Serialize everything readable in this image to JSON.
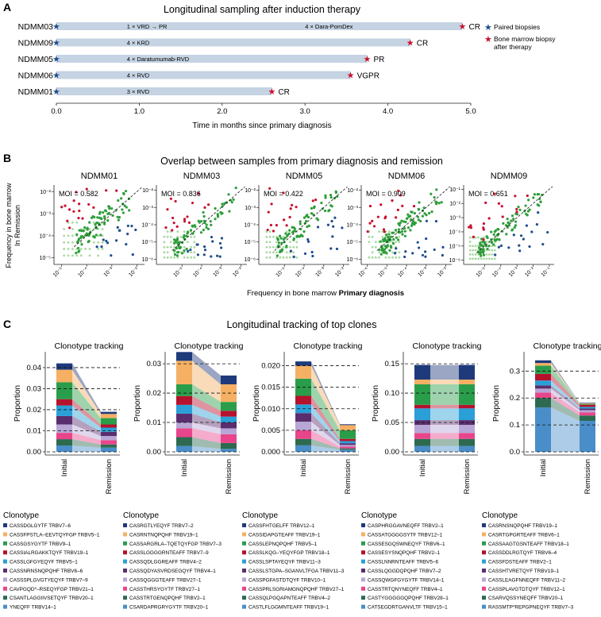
{
  "panels": {
    "a": "A",
    "b": "B",
    "c": "C"
  },
  "colors": {
    "paired_star": "#1f4e8c",
    "bm_star": "#c8102e",
    "timeline_bar": "#c5d3e3",
    "red_dot": "#c8102e",
    "green_dot": "#2e9e3a",
    "lightgreen_dot": "#a8d8a0",
    "blue_dot": "#1f4e8c"
  },
  "chart_data": [
    {
      "type": "bar",
      "panel": "A",
      "title": "Longitudinal sampling after induction therapy",
      "xlabel": "Time in months since primary diagnosis",
      "xlim": [
        0,
        5.0
      ],
      "xticks": [
        "0.0",
        "1.0",
        "2.0",
        "3.0",
        "4.0",
        "5.0"
      ],
      "xtick_values": [
        0,
        1,
        2,
        3,
        4,
        5
      ],
      "legend": [
        "Paired biopsies",
        "Bone marrow biopsy",
        "after therapy"
      ],
      "rows": [
        {
          "id": "NDMM03",
          "end": 4.9,
          "response": "CR",
          "segments": [
            {
              "label": "1 × VRD → PR",
              "at": 0.85
            },
            {
              "label": "4 × Dara-PomDex",
              "at": 3.0
            }
          ]
        },
        {
          "id": "NDMM09",
          "end": 4.27,
          "response": "CR",
          "segments": [
            {
              "label": "4 × KRD",
              "at": 0.85
            }
          ]
        },
        {
          "id": "NDMM05",
          "end": 3.75,
          "response": "PR",
          "segments": [
            {
              "label": "4 × Daratumumab-RVD",
              "at": 0.85
            }
          ]
        },
        {
          "id": "NDMM06",
          "end": 3.55,
          "response": "VGPR",
          "segments": [
            {
              "label": "4 × RVD",
              "at": 0.85
            }
          ]
        },
        {
          "id": "NDMM01",
          "end": 2.6,
          "response": "CR",
          "segments": [
            {
              "label": "3 × RVD",
              "at": 0.85
            }
          ]
        }
      ]
    },
    {
      "type": "scatter",
      "panel": "B",
      "title": "Overlap between samples from primary diagnosis and remission",
      "ylabel_line1": "Frequency in bone marrow",
      "ylabel_line2": "In Remission",
      "xlabel_prefix": "Frequency in bone marrow ",
      "xlabel_bold": "Primary diagnosis",
      "subplots": [
        {
          "name": "NDMM01",
          "moi": "MOI = 0.582",
          "xmin": -5.3,
          "xmax": -1.7,
          "ymin": -5.3,
          "ymax": -1.7,
          "xticks": [
            "10⁻⁵",
            "10⁻⁴",
            "10⁻³",
            "10⁻²"
          ],
          "xtick_values": [
            -5,
            -4,
            -3,
            -2
          ],
          "yticks": [
            "10⁻²",
            "10⁻³",
            "10⁻⁴",
            "10⁻⁵"
          ],
          "ytick_values": [
            -2,
            -3,
            -4,
            -5
          ],
          "seed": 11
        },
        {
          "name": "NDMM03",
          "moi": "MOI = 0.836",
          "xmin": -6.3,
          "xmax": -1.7,
          "ymin": -6.3,
          "ymax": -1.7,
          "xticks": [
            "10⁻⁵",
            "10⁻⁴",
            "10⁻³",
            "10⁻²"
          ],
          "xtick_values": [
            -5,
            -4,
            -3,
            -2
          ],
          "yticks": [
            "10⁻²",
            "10⁻³",
            "10⁻⁴",
            "10⁻⁵",
            "10⁻⁶"
          ],
          "ytick_values": [
            -2,
            -3,
            -4,
            -5,
            -6
          ],
          "seed": 23
        },
        {
          "name": "NDMM05",
          "moi": "MOI = 0.422",
          "xmin": -6.3,
          "xmax": -1.7,
          "ymin": -6.3,
          "ymax": -1.7,
          "xticks": [
            "10⁻⁵",
            "10⁻⁴",
            "10⁻³",
            "10⁻²"
          ],
          "xtick_values": [
            -5,
            -4,
            -3,
            -2
          ],
          "yticks": [
            "10⁻²",
            "10⁻³",
            "10⁻⁴",
            "10⁻⁵",
            "10⁻⁶"
          ],
          "ytick_values": [
            -2,
            -3,
            -4,
            -5,
            -6
          ],
          "seed": 37
        },
        {
          "name": "NDMM06",
          "moi": "MOI = 0.909",
          "xmin": -6.3,
          "xmax": -1.7,
          "ymin": -6.3,
          "ymax": -1.7,
          "xticks": [
            "10⁻⁶",
            "10⁻⁵",
            "10⁻⁴",
            "10⁻³",
            "10⁻²"
          ],
          "xtick_values": [
            -6,
            -5,
            -4,
            -3,
            -2
          ],
          "yticks": [
            "10⁻²",
            "10⁻³",
            "10⁻⁴",
            "10⁻⁵",
            "10⁻⁶"
          ],
          "ytick_values": [
            -2,
            -3,
            -4,
            -5,
            -6
          ],
          "seed": 41
        },
        {
          "name": "NDMM09",
          "moi": "MOI = 0.651",
          "xmin": -6.3,
          "xmax": -0.7,
          "ymin": -6.3,
          "ymax": -0.7,
          "xticks": [
            "10⁻⁵",
            "10⁻⁴",
            "10⁻³",
            "10⁻²",
            "10⁻¹"
          ],
          "xtick_values": [
            -5,
            -4,
            -3,
            -2,
            -1
          ],
          "yticks": [
            "10⁻¹",
            "10⁻²",
            "10⁻³",
            "10⁻⁴",
            "10⁻⁵",
            "10⁻⁶"
          ],
          "ytick_values": [
            -1,
            -2,
            -3,
            -4,
            -5,
            -6
          ],
          "seed": 53
        }
      ]
    },
    {
      "type": "area",
      "panel": "C",
      "title": "Longitudinal tracking of top clones",
      "ylabel": "Proportion",
      "categories": [
        "Initial",
        "Remission"
      ],
      "legend_title": "Clonotype",
      "subplots": [
        {
          "title": "Clonotype tracking",
          "ymax": 0.046,
          "yticks": [
            "0.00",
            "0.01",
            "0.02",
            "0.03",
            "0.04"
          ],
          "ytick_values": [
            0,
            0.01,
            0.02,
            0.03,
            0.04
          ],
          "initial": [
            0.003,
            0.003,
            0.003,
            0.004,
            0.004,
            0.005,
            0.003,
            0.008,
            0.006,
            0.003
          ],
          "remission": [
            0.002,
            0.0015,
            0.002,
            0.002,
            0.002,
            0.002,
            0.0015,
            0.003,
            0.002,
            0.001
          ],
          "clonotypes": [
            "CASSDGLGYTF TRBV7–6",
            "CASSFPSTLA–EEVTQYFGP TRBV5–1",
            "CASSGSYGYTF TRBV9–1",
            "CASSIALRGAKKTQYF TRBV19–1",
            "CASSLGFGYEQYF TRBV5–1",
            "CASSNRNSNQPQHF TRBV6–6",
            "CASSSPLGVGTYEQYF TRBV7–9",
            "CAVPGQD*–RSEQYFGP TRBV21–1",
            "CSANTLAGGIIVSETQYF TRBV20–1",
            "YNEQFF TRBV14–1"
          ]
        },
        {
          "title": "Clonotype tracking",
          "ymax": 0.033,
          "yticks": [
            "0.00",
            "0.01",
            "0.02",
            "0.03"
          ],
          "ytick_values": [
            0,
            0.01,
            0.02,
            0.03
          ],
          "initial": [
            0.002,
            0.003,
            0.003,
            0.002,
            0.003,
            0.003,
            0.003,
            0.004,
            0.008,
            0.003
          ],
          "remission": [
            0.001,
            0.002,
            0.003,
            0.002,
            0.002,
            0.002,
            0.002,
            0.003,
            0.006,
            0.003
          ],
          "clonotypes": [
            "CASRGTLYEQYF TRBV7–2",
            "CASRNTNQPQHF TRBV19–1",
            "CASSARGRLA–TQETQYFGP TRBV7–3",
            "CASSLGGGGRNTEAFF TRBV7–9",
            "CASSQDLGGREAFF TRBV4–2",
            "CASSQDYASVRDSEGQYF TRBV4–1",
            "CASSQGGGTEAFF TRBV27–1",
            "CASSTHRSYGYTF TRBV27–1",
            "CASSTRTGENQPQHF TRBV2–1",
            "CSARDAPRGRYGYTF TRBV20–1"
          ]
        },
        {
          "title": "Clonotype tracking",
          "ymax": 0.0225,
          "yticks": [
            "0.000",
            "0.005",
            "0.010",
            "0.015",
            "0.020"
          ],
          "ytick_values": [
            0,
            0.005,
            0.01,
            0.015,
            0.02
          ],
          "initial": [
            0.0015,
            0.0015,
            0.002,
            0.002,
            0.002,
            0.002,
            0.002,
            0.004,
            0.003,
            0.001
          ],
          "remission": [
            0.0005,
            0.0003,
            0.0004,
            0.0004,
            0.0004,
            0.0005,
            0.0005,
            0.002,
            0.0012,
            0.0002
          ],
          "clonotypes": [
            "CASSFHTGELFF TRBV12–1",
            "CASSIDAPGTEAFF TRBV19–1",
            "CASSLEPNQPQHF TRBV5–1",
            "CASSLKQG–YEQYFGP TRBV18–1",
            "CASSLSPTAYEQYF TRBV11–3",
            "CASSLSTGPA–SGANVLTFGA TRBV11–3",
            "CASSPGFASTDTQYF TRBV10–1",
            "CASSPRLSGRIAMGNQPQHF TRBV27–1",
            "CASSQLPGQAPNTEAFF TRBV4–2",
            "CASTLFLGGMNTEAFF TRBV19–1"
          ]
        },
        {
          "title": "Clonotype tracking",
          "ymax": 0.165,
          "yticks": [
            "0.00",
            "0.05",
            "0.10",
            "0.15"
          ],
          "ytick_values": [
            0,
            0.05,
            0.1,
            0.15
          ],
          "initial": [
            0.01,
            0.012,
            0.01,
            0.014,
            0.008,
            0.02,
            0.006,
            0.035,
            0.008,
            0.025
          ],
          "remission": [
            0.01,
            0.012,
            0.01,
            0.014,
            0.008,
            0.02,
            0.006,
            0.035,
            0.008,
            0.025
          ],
          "clonotypes": [
            "CASPHRGGAVNEQFF TRBV2–1",
            "CASSATGGGGSYTF TRBV12–1",
            "CASSESGQSWNEQYF TRBV6–1",
            "CASSESYSNQPQHF TRBV2–1",
            "CASSLNNRNTEAFF TRBV5–6",
            "CASSLQGGDQPQHF TRBV7–2",
            "CASSQWGFGYGYTF TRBV14–1",
            "CASSTRTQNYNEQFF TRBV4–1",
            "CASTYGGGGGQPQHF TRBV28–1",
            "CATSEGDRTGANVLTF TRBV15–1"
          ]
        },
        {
          "title": "Clonotype tracking",
          "ymax": 0.36,
          "yticks": [
            "0.0",
            "0.1",
            "0.2",
            "0.3"
          ],
          "ytick_values": [
            0,
            0.1,
            0.2,
            0.3
          ],
          "initial": [
            0.165,
            0.035,
            0.02,
            0.015,
            0.012,
            0.018,
            0.025,
            0.03,
            0.01,
            0.01
          ],
          "remission": [
            0.115,
            0.02,
            0.012,
            0.008,
            0.006,
            0.006,
            0.008,
            0.003,
            0.002,
            0.002
          ],
          "clonotypes": [
            "CASRNSNQPQHF TRBV19–1",
            "CASRTGPGRTEAFF TRBV6–1",
            "CASSAAGTGSNTEAFF TRBV18–1",
            "CASSDDLRGTQYF TRBV6–4",
            "CASSFDSTEAFF TRBV2–1",
            "CASSHTVRETQYF TRBV19–1",
            "CASSLEAGFNNEQFF TRBV11–2",
            "CASSPLAVGTDTQYF TRBV12–1",
            "CSARVQSSYNEQFF TRBV20–1",
            "RASSMTP*REPGPNEQYF TRBV7–3"
          ]
        }
      ]
    }
  ]
}
